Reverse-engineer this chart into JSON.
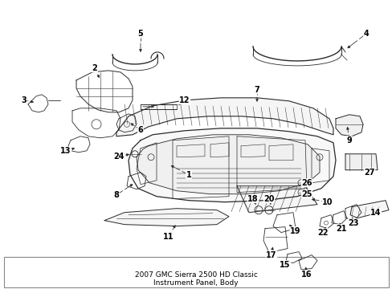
{
  "title": "2007 GMC Sierra 2500 HD Classic\nInstrument Panel, Body",
  "title_fontsize": 6.5,
  "background_color": "#ffffff",
  "line_color": "#2a2a2a",
  "text_color": "#000000",
  "fig_width": 4.89,
  "fig_height": 3.6,
  "dpi": 100
}
